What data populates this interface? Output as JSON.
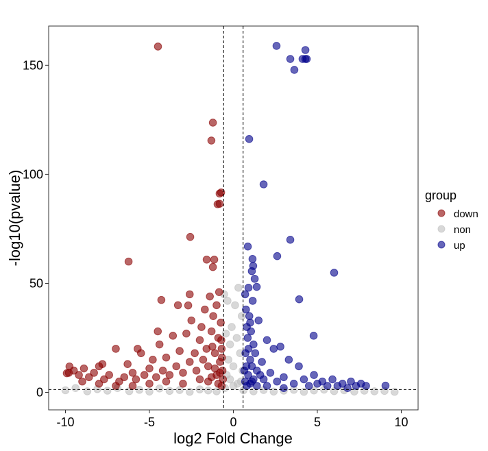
{
  "chart_data": {
    "type": "scatter",
    "xlabel": "log2 Fold Change",
    "ylabel": "-log10(pvalue)",
    "xlim": [
      -11,
      11
    ],
    "ylim": [
      -8,
      168
    ],
    "xticks": [
      -10,
      -5,
      0,
      5,
      10
    ],
    "yticks": [
      0,
      50,
      100,
      150
    ],
    "grid": false,
    "thresholds": {
      "vlines": [
        -0.58,
        0.58
      ],
      "hline": 1.3
    },
    "legend": {
      "title": "group",
      "placement": "right"
    },
    "series": [
      {
        "name": "down",
        "color": "#8B0000",
        "points": [
          [
            -4.49,
            158.6
          ],
          [
            -1.22,
            123.7
          ],
          [
            -1.31,
            115.5
          ],
          [
            -0.73,
            91.7
          ],
          [
            -0.82,
            91.2
          ],
          [
            -0.94,
            86.3
          ],
          [
            -0.82,
            86.5
          ],
          [
            -2.57,
            71.3
          ],
          [
            -6.24,
            60
          ],
          [
            -1.59,
            60.9
          ],
          [
            -1.14,
            60.9
          ],
          [
            -1.22,
            57.5
          ],
          [
            -4.29,
            42.4
          ],
          [
            -2.69,
            39.9
          ],
          [
            -9.92,
            8.8
          ],
          [
            -9.76,
            11.9
          ],
          [
            -9.5,
            10
          ],
          [
            -9.2,
            8
          ],
          [
            -8.9,
            11
          ],
          [
            -8.6,
            7
          ],
          [
            -8.3,
            9
          ],
          [
            -8.0,
            12
          ],
          [
            -7.7,
            6
          ],
          [
            -7.4,
            8
          ],
          [
            -7.0,
            20
          ],
          [
            -6.8,
            5
          ],
          [
            -6.5,
            7
          ],
          [
            -6.3,
            13
          ],
          [
            -6.0,
            9
          ],
          [
            -5.8,
            6
          ],
          [
            -5.5,
            18
          ],
          [
            -5.3,
            8
          ],
          [
            -5.0,
            11
          ],
          [
            -4.8,
            15
          ],
          [
            -4.6,
            7
          ],
          [
            -4.4,
            22
          ],
          [
            -4.2,
            10
          ],
          [
            -4.0,
            16
          ],
          [
            -3.8,
            8
          ],
          [
            -3.6,
            26
          ],
          [
            -3.4,
            12
          ],
          [
            -3.2,
            19
          ],
          [
            -3.0,
            9
          ],
          [
            -2.8,
            27
          ],
          [
            -2.6,
            14
          ],
          [
            -2.5,
            33
          ],
          [
            -2.3,
            18
          ],
          [
            -2.2,
            10
          ],
          [
            -2.0,
            24
          ],
          [
            -1.9,
            30
          ],
          [
            -1.8,
            15
          ],
          [
            -1.7,
            38
          ],
          [
            -1.6,
            20
          ],
          [
            -1.5,
            12
          ],
          [
            -1.4,
            44
          ],
          [
            -1.3,
            28
          ],
          [
            -1.2,
            35
          ],
          [
            -1.1,
            18
          ],
          [
            -1.0,
            40
          ],
          [
            -0.9,
            25
          ],
          [
            -0.85,
            46
          ],
          [
            -0.8,
            14
          ],
          [
            -0.75,
            32
          ],
          [
            -0.7,
            20
          ],
          [
            -0.65,
            10
          ],
          [
            -0.62,
            6
          ],
          [
            -1.0,
            8
          ],
          [
            -1.5,
            5
          ],
          [
            -2.0,
            6
          ],
          [
            -3.0,
            4
          ],
          [
            -4.0,
            5
          ],
          [
            -5.0,
            4
          ],
          [
            -6.0,
            3
          ],
          [
            -7.0,
            3
          ],
          [
            -8.0,
            4
          ],
          [
            -9.0,
            5
          ],
          [
            -9.8,
            9
          ],
          [
            -7.8,
            13
          ],
          [
            -5.7,
            20
          ],
          [
            -4.5,
            28
          ],
          [
            -3.3,
            40
          ],
          [
            -2.6,
            45
          ],
          [
            -0.7,
            3
          ],
          [
            -0.9,
            4
          ],
          [
            -1.3,
            7
          ],
          [
            -0.8,
            9
          ],
          [
            -1.1,
            11
          ],
          [
            -0.68,
            16
          ],
          [
            -0.72,
            24
          ],
          [
            -1.25,
            21
          ]
        ]
      },
      {
        "name": "non",
        "color": "#BEBEBE",
        "points": [
          [
            -10,
            1
          ],
          [
            -9.4,
            2
          ],
          [
            -8.7,
            0.5
          ],
          [
            -8.1,
            1.5
          ],
          [
            -7.5,
            0.8
          ],
          [
            -6.9,
            2
          ],
          [
            -6.2,
            0.6
          ],
          [
            -5.6,
            1.2
          ],
          [
            -5.0,
            0.4
          ],
          [
            -4.4,
            1.8
          ],
          [
            -3.8,
            0.7
          ],
          [
            -3.2,
            1.1
          ],
          [
            -2.6,
            0.3
          ],
          [
            -2.0,
            1.4
          ],
          [
            -1.5,
            0.9
          ],
          [
            -1.0,
            0.5
          ],
          [
            -0.5,
            2
          ],
          [
            -0.4,
            8
          ],
          [
            -0.3,
            15
          ],
          [
            -0.2,
            22
          ],
          [
            -0.1,
            30
          ],
          [
            0,
            12
          ],
          [
            0.1,
            40
          ],
          [
            0.2,
            25
          ],
          [
            0.3,
            48
          ],
          [
            0.4,
            18
          ],
          [
            0.5,
            35
          ],
          [
            0.45,
            5
          ],
          [
            -0.45,
            27
          ],
          [
            -0.35,
            42
          ],
          [
            0.55,
            10
          ],
          [
            -0.55,
            45
          ],
          [
            0.6,
            1
          ],
          [
            1.2,
            0.5
          ],
          [
            1.8,
            1.1
          ],
          [
            2.4,
            0.4
          ],
          [
            3.0,
            0.8
          ],
          [
            3.6,
            1.2
          ],
          [
            4.2,
            0.3
          ],
          [
            4.8,
            0.9
          ],
          [
            5.4,
            1.3
          ],
          [
            6.0,
            0.6
          ],
          [
            6.6,
            1
          ],
          [
            7.2,
            0.4
          ],
          [
            7.8,
            0.8
          ],
          [
            8.4,
            0.5
          ],
          [
            9.0,
            0.7
          ],
          [
            9.6,
            0.3
          ],
          [
            0,
            3
          ],
          [
            -0.2,
            6
          ],
          [
            0.25,
            4
          ]
        ]
      },
      {
        "name": "up",
        "color": "#00008B",
        "points": [
          [
            2.57,
            158.9
          ],
          [
            4.29,
            157
          ],
          [
            3.39,
            152.9
          ],
          [
            4.12,
            152.9
          ],
          [
            4.29,
            152.9
          ],
          [
            4.37,
            152.9
          ],
          [
            3.63,
            147.9
          ],
          [
            0.94,
            116.2
          ],
          [
            1.8,
            95.4
          ],
          [
            3.39,
            70
          ],
          [
            0.86,
            66.9
          ],
          [
            2.61,
            62.5
          ],
          [
            6.0,
            54.9
          ],
          [
            1.14,
            61.2
          ],
          [
            1.18,
            58
          ],
          [
            1.1,
            55.6
          ],
          [
            1.27,
            52.1
          ],
          [
            1.39,
            48.4
          ],
          [
            3.92,
            42.7
          ],
          [
            9.06,
            3.1
          ],
          [
            4.78,
            26
          ],
          [
            0.7,
            45
          ],
          [
            0.75,
            38
          ],
          [
            0.8,
            30
          ],
          [
            0.85,
            25
          ],
          [
            0.9,
            20
          ],
          [
            0.95,
            35
          ],
          [
            1.0,
            15
          ],
          [
            1.05,
            28
          ],
          [
            1.1,
            12
          ],
          [
            1.15,
            42
          ],
          [
            1.2,
            22
          ],
          [
            1.3,
            18
          ],
          [
            1.4,
            10
          ],
          [
            1.5,
            33
          ],
          [
            1.6,
            8
          ],
          [
            1.7,
            14
          ],
          [
            1.8,
            6
          ],
          [
            2.0,
            24
          ],
          [
            2.2,
            9
          ],
          [
            2.4,
            20
          ],
          [
            2.6,
            5
          ],
          [
            2.8,
            21
          ],
          [
            3.0,
            7
          ],
          [
            3.3,
            15
          ],
          [
            3.6,
            4
          ],
          [
            3.9,
            12
          ],
          [
            4.2,
            6
          ],
          [
            4.5,
            3
          ],
          [
            4.8,
            8
          ],
          [
            5.0,
            4
          ],
          [
            5.3,
            5
          ],
          [
            5.6,
            3
          ],
          [
            5.9,
            6
          ],
          [
            6.2,
            3
          ],
          [
            6.5,
            4
          ],
          [
            6.8,
            2
          ],
          [
            7.0,
            5
          ],
          [
            7.3,
            3
          ],
          [
            7.6,
            4
          ],
          [
            7.9,
            3
          ],
          [
            0.65,
            10
          ],
          [
            0.7,
            5
          ],
          [
            0.8,
            3
          ],
          [
            1.0,
            4
          ],
          [
            1.2,
            6
          ],
          [
            1.4,
            3
          ],
          [
            2.0,
            3
          ],
          [
            3.0,
            2
          ],
          [
            0.9,
            48
          ],
          [
            1.0,
            32
          ],
          [
            0.72,
            18
          ],
          [
            0.78,
            12
          ],
          [
            0.88,
            8
          ],
          [
            1.1,
            5
          ]
        ]
      }
    ]
  }
}
